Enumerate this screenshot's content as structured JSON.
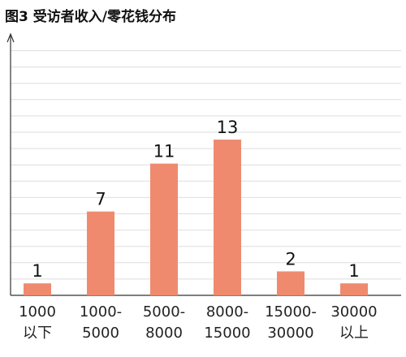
{
  "chart_data": {
    "type": "bar",
    "title": "图3 受访者收入/零花钱分布",
    "categories": [
      "1000\n以下",
      "1000-\n5000",
      "5000-\n8000",
      "8000-\n15000",
      "15000-\n30000",
      "30000\n以上"
    ],
    "values": [
      1,
      7,
      11,
      13,
      2,
      1
    ],
    "color": "#ef8a6f",
    "ylim": [
      0,
      21
    ],
    "grid": true
  }
}
